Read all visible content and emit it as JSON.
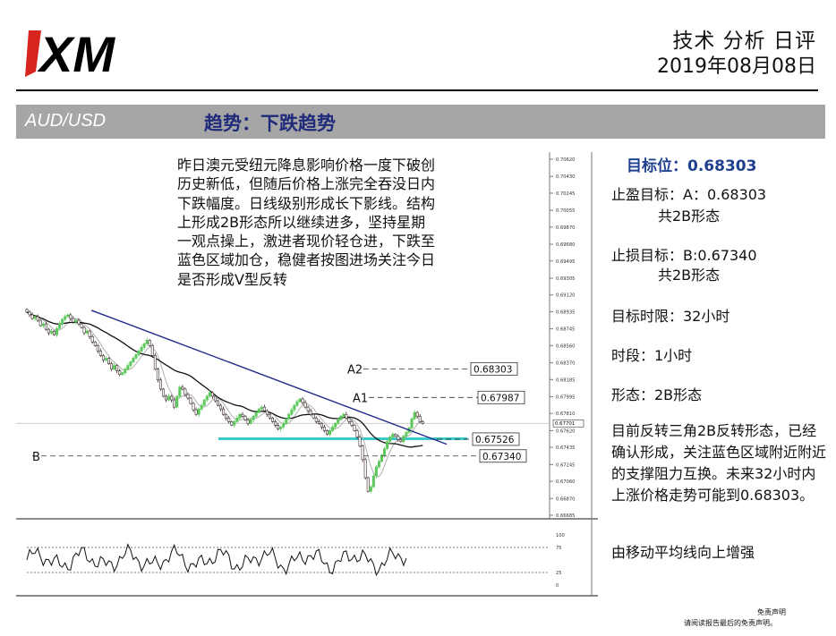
{
  "header": {
    "logo_text": "XM",
    "title": "技术 分析 日评",
    "date": "2019年08月08日"
  },
  "banner": {
    "pair": "AUD/USD",
    "trend": "趋势：下跌趋势"
  },
  "analysis_text": "昨日澳元受纽元降息影响价格一度下破创历史新低，但随后价格上涨完全吞没日内下跌幅度。日线级别形成长下影线。结构上形成2B形态所以继续进多，坚持星期一观点操上，激进者现价轻仓进，下跌至蓝色区域加仓，稳健者按图进场关注今日是否形成V型反转",
  "side": {
    "target": "目标位：0.68303",
    "tp_line1": "止盈目标：A：0.68303",
    "tp_line2": "共2B形态",
    "sl_line1": "止损目标：B:0.67340",
    "sl_line2": "共2B形态",
    "timeframe": "目标时限：32小时",
    "period": "时段：1小时",
    "pattern": "形态：2B形态",
    "note": "目前反转三角2B反转形态，已经确认形成，关注蓝色区域附近附近的支撑阻力互换。未来32小时内上涨价格走势可能到0.68303。",
    "ma_note": "由移动平均线向上增强"
  },
  "disclaimer": {
    "line1": "免责声明",
    "line2": "请阅读报告最后的免责声明。"
  },
  "chart_data": {
    "type": "candlestick",
    "timeframe": "1小时",
    "y_axis_ticks": [
      "0.70620",
      "0.70430",
      "0.70245",
      "0.70055",
      "0.69870",
      "0.69680",
      "0.69495",
      "0.69305",
      "0.69120",
      "0.68935",
      "0.68745",
      "0.68560",
      "0.68370",
      "0.68185",
      "0.67995",
      "0.67810",
      "0.67620",
      "0.67435",
      "0.67245",
      "0.67060",
      "0.66870",
      "0.66685"
    ],
    "ylim": [
      0.6662,
      0.707
    ],
    "current_price": "0.67701",
    "levels": [
      {
        "label": "A2",
        "value": 0.68303,
        "text": "0.68303"
      },
      {
        "label": "A1",
        "value": 0.67987,
        "text": "0.67987"
      },
      {
        "label": "",
        "value": 0.67526,
        "text": "0.67526"
      },
      {
        "label": "B",
        "value": 0.6734,
        "text": "0.67340"
      }
    ],
    "support_zone": 0.6753,
    "trendline": {
      "start": [
        2,
        0.6895
      ],
      "end": [
        142,
        0.6747
      ]
    },
    "closes": [
      0.6893,
      0.689,
      0.6886,
      0.6888,
      0.6884,
      0.6878,
      0.688,
      0.6874,
      0.687,
      0.6872,
      0.6868,
      0.6875,
      0.688,
      0.6885,
      0.6888,
      0.689,
      0.6886,
      0.6882,
      0.6884,
      0.688,
      0.6876,
      0.687,
      0.6872,
      0.6866,
      0.686,
      0.6856,
      0.685,
      0.6845,
      0.684,
      0.6842,
      0.6836,
      0.683,
      0.6834,
      0.6828,
      0.6824,
      0.6826,
      0.683,
      0.6834,
      0.6838,
      0.6842,
      0.6846,
      0.685,
      0.6854,
      0.6858,
      0.6862,
      0.6856,
      0.6845,
      0.683,
      0.6818,
      0.6808,
      0.68,
      0.6796,
      0.68,
      0.6796,
      0.6788,
      0.68,
      0.681,
      0.6808,
      0.6802,
      0.6798,
      0.6792,
      0.6785,
      0.678,
      0.6786,
      0.679,
      0.6796,
      0.68,
      0.6804,
      0.68,
      0.6795,
      0.679,
      0.6786,
      0.678,
      0.6776,
      0.6772,
      0.6768,
      0.6772,
      0.6776,
      0.678,
      0.6778,
      0.6774,
      0.677,
      0.6774,
      0.6778,
      0.6782,
      0.6786,
      0.6788,
      0.6784,
      0.678,
      0.6776,
      0.6772,
      0.6768,
      0.6764,
      0.6766,
      0.677,
      0.6775,
      0.678,
      0.6785,
      0.679,
      0.6794,
      0.6797,
      0.6793,
      0.6788,
      0.6784,
      0.678,
      0.6776,
      0.6772,
      0.677,
      0.6766,
      0.6762,
      0.6758,
      0.6762,
      0.6766,
      0.677,
      0.6774,
      0.6778,
      0.678,
      0.6776,
      0.6772,
      0.6768,
      0.6762,
      0.6755,
      0.6745,
      0.673,
      0.671,
      0.6695,
      0.67,
      0.6712,
      0.6722,
      0.6728,
      0.6735,
      0.6742,
      0.675,
      0.6755,
      0.6758,
      0.6756,
      0.6752,
      0.675,
      0.6756,
      0.676,
      0.6765,
      0.6775,
      0.6782,
      0.6778,
      0.6772,
      0.677
    ],
    "oscillator": {
      "ylim": [
        0,
        100
      ],
      "ticks": [
        "100",
        "75",
        "25",
        "0"
      ]
    }
  }
}
